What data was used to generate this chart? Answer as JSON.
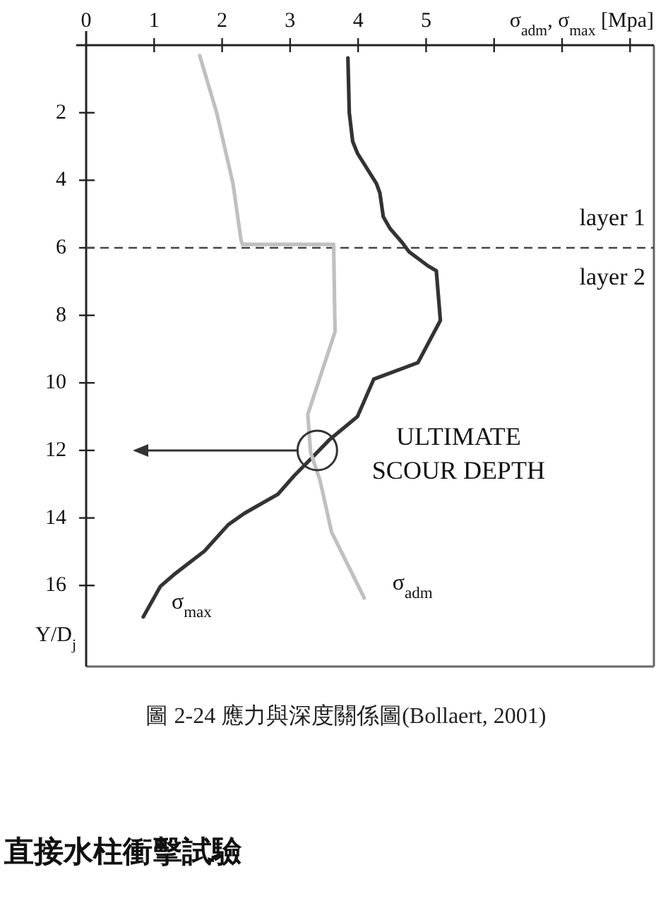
{
  "chart_data": {
    "type": "line",
    "xlabel": "σ$_{adm}$, σ$_{max}$ [Mpa]",
    "ylabel": "Y/D$_{j}$",
    "xlim": [
      0,
      8.35
    ],
    "xticks": [
      {
        "value": 0,
        "label": "0"
      },
      1,
      2,
      3,
      4,
      5,
      {
        "value": 6,
        "label": null
      },
      {
        "value": 7,
        "label": null
      },
      {
        "value": 8,
        "label": null
      }
    ],
    "ylim": [
      18.4,
      0
    ],
    "yticks": [
      2,
      4,
      6,
      8,
      10,
      12,
      14,
      16
    ],
    "series": [
      {
        "name": "σ$_{max}$",
        "color": "#333333",
        "x": [
          3.85,
          3.87,
          3.92,
          3.99,
          4.27,
          4.32,
          4.37,
          4.47,
          4.65,
          4.75,
          5.03,
          5.15,
          5.21,
          4.88,
          4.23,
          3.99,
          3.57,
          3.3,
          3.06,
          2.82,
          2.33,
          2.09,
          1.74,
          1.29,
          1.09,
          0.84
        ],
        "values": [
          0.38,
          2.0,
          2.85,
          3.2,
          4.1,
          4.38,
          5.08,
          5.43,
          5.85,
          6.12,
          6.54,
          6.68,
          8.15,
          9.4,
          9.89,
          11.0,
          11.7,
          12.26,
          12.75,
          13.3,
          13.86,
          14.2,
          14.98,
          15.68,
          16.03,
          16.93
        ]
      },
      {
        "name": "σ$_{adm}$",
        "color": "#c0c0c0",
        "x": [
          1.67,
          1.92,
          2.16,
          2.28,
          2.3,
          3.64,
          3.66,
          3.26,
          3.3,
          3.44,
          3.61,
          4.09
        ],
        "values": [
          0.31,
          2.0,
          4.1,
          5.8,
          5.9,
          5.9,
          8.49,
          10.93,
          12.05,
          12.89,
          14.42,
          16.37
        ]
      }
    ],
    "ref_lines": [
      {
        "axis": "y",
        "value": 6,
        "color": "#444444",
        "line_style": "dashed"
      }
    ],
    "annotations": [
      "layer 1",
      "layer 2",
      {
        "text": "ULTIMATE\nSCOUR DEPTH",
        "x": 3.4,
        "y": 12
      },
      "圖 2-24 應力與深度關係圖(Bollaert, 2001)",
      "直接水柱衝擊試驗"
    ]
  }
}
